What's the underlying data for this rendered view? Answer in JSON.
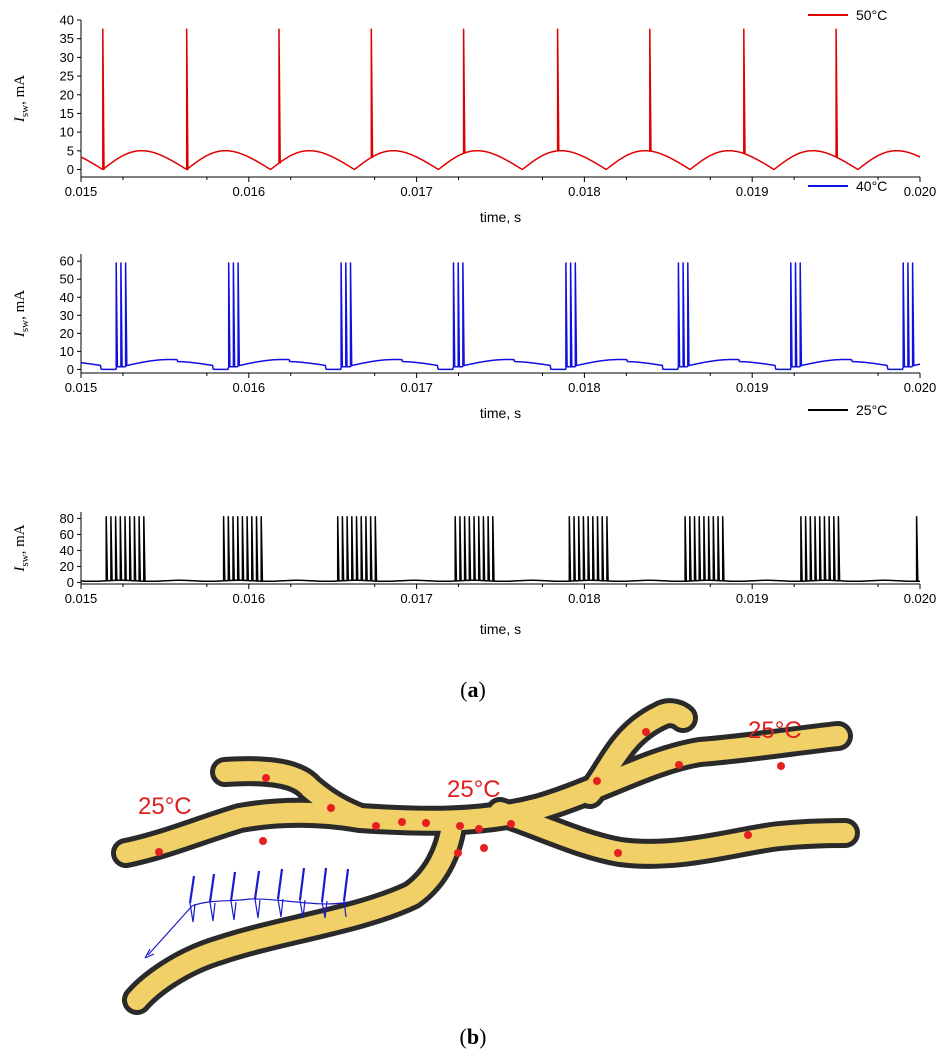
{
  "chart_data": [
    {
      "type": "line",
      "panel": "50°C",
      "xlabel": "time, s",
      "ylabel": "I_sw, mA",
      "ylabel_main": "I",
      "ylabel_sub": "sw",
      "ylabel_rest": ", mA",
      "xlim": [
        0.015,
        0.02
      ],
      "ylim": [
        -2,
        40
      ],
      "xticks": [
        "0.015",
        "0.016",
        "0.017",
        "0.018",
        "0.019",
        "0.020"
      ],
      "yticks": [
        "0",
        "5",
        "10",
        "15",
        "20",
        "25",
        "30",
        "35",
        "40"
      ],
      "ytick_values": [
        0,
        5,
        10,
        15,
        20,
        25,
        30,
        35,
        40
      ],
      "series": [
        {
          "name": "50°C",
          "color": "#e00000",
          "baseline_pattern": "sinusoidal humps, peak ~5 mA",
          "spike_peak": 37.5,
          "spike_times": [
            0.01513,
            0.01563,
            0.01618,
            0.01673,
            0.01728,
            0.01784,
            0.01839,
            0.01895,
            0.0195
          ],
          "burst_size": 1
        }
      ]
    },
    {
      "type": "line",
      "panel": "40°C",
      "xlabel": "time, s",
      "ylabel": "I_sw, mA",
      "ylabel_main": "I",
      "ylabel_sub": "sw",
      "ylabel_rest": ", mA",
      "xlim": [
        0.015,
        0.02
      ],
      "ylim": [
        -2,
        64
      ],
      "xticks": [
        "0.015",
        "0.016",
        "0.017",
        "0.018",
        "0.019",
        "0.020"
      ],
      "yticks": [
        "0",
        "10",
        "20",
        "30",
        "40",
        "50",
        "60"
      ],
      "ytick_values": [
        0,
        10,
        20,
        30,
        40,
        50,
        60
      ],
      "series": [
        {
          "name": "40°C",
          "color": "#1010e0",
          "baseline_pattern": "humps, peak ~5.5 mA",
          "spike_peak": 59,
          "spike_times": [
            0.01521,
            0.01588,
            0.01655,
            0.01722,
            0.01789,
            0.01856,
            0.01923,
            0.0199
          ],
          "burst_size": 3
        }
      ]
    },
    {
      "type": "line",
      "panel": "25°C",
      "xlabel": "time, s",
      "ylabel": "I_sw, mA",
      "ylabel_main": "I",
      "ylabel_sub": "sw",
      "ylabel_rest": ", mA",
      "xlim": [
        0.015,
        0.02
      ],
      "ylim": [
        -2,
        88
      ],
      "xticks": [
        "0.015",
        "0.016",
        "0.017",
        "0.018",
        "0.019",
        "0.020"
      ],
      "yticks": [
        "0",
        "20",
        "40",
        "60",
        "80"
      ],
      "ytick_values": [
        0,
        20,
        40,
        60,
        80
      ],
      "series": [
        {
          "name": "25°C",
          "color": "#000000",
          "baseline_pattern": "flat ~2 mA",
          "spike_peak": 82,
          "spike_times": [
            0.01515,
            0.01585,
            0.01653,
            0.01723,
            0.01791,
            0.0186,
            0.01929,
            0.01998
          ],
          "burst_size": 9
        }
      ]
    }
  ],
  "panel_labels": {
    "a": "(a)",
    "a_letter": "a",
    "b": "(b)",
    "b_letter": "b"
  },
  "diagram": {
    "temp_left": "25°C",
    "temp_center": "25°C",
    "temp_right": "25°C"
  },
  "colors": {
    "organism_fill": "#f2d068",
    "organism_outline": "#2a2a2a",
    "dots": "#e52020",
    "pulse_train": "#1a1acc"
  }
}
